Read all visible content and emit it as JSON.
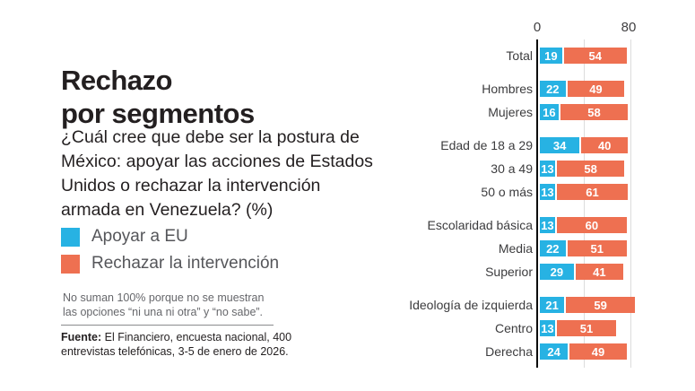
{
  "title": {
    "line1": "Rechazo",
    "line2": "por segmentos"
  },
  "question": "¿Cuál cree que debe ser la postura de\nMéxico: apoyar las acciones de Estados\nUnidos o rechazar la intervención\narmada en Venezuela? (%)",
  "legend": {
    "items": [
      {
        "label": "Apoyar a EU",
        "color": "#27b2e3"
      },
      {
        "label": "Rechazar la intervención",
        "color": "#ee7051"
      }
    ]
  },
  "note": "No suman 100% porque no se muestran\nlas opciones “ni una ni otra” y “no sabe”.",
  "source": {
    "label": "Fuente:",
    "text": "El Financiero, encuesta nacional, 400 entrevistas telefónicas, 3-5 de enero de 2026."
  },
  "chart_data": {
    "type": "bar",
    "orientation": "horizontal",
    "stacked": true,
    "title": "Rechazo por segmentos",
    "categories": [
      "Total",
      "Hombres",
      "Mujeres",
      "Edad de 18 a 29",
      "30 a 49",
      "50 o más",
      "Escolaridad básica",
      "Media",
      "Superior",
      "Ideología de izquierda",
      "Centro",
      "Derecha"
    ],
    "group_starts": [
      0,
      1,
      3,
      6,
      9
    ],
    "series": [
      {
        "name": "Apoyar a EU",
        "color": "#27b2e3",
        "values": [
          19,
          22,
          16,
          34,
          13,
          13,
          13,
          22,
          29,
          21,
          13,
          24
        ]
      },
      {
        "name": "Rechazar la intervención",
        "color": "#ee7051",
        "values": [
          54,
          49,
          58,
          40,
          58,
          61,
          60,
          51,
          41,
          59,
          51,
          49
        ]
      }
    ],
    "xlim": [
      0,
      80
    ],
    "tick_labels": [
      "0",
      "80"
    ],
    "gridlines": [
      40,
      80
    ],
    "legend_position": "left",
    "value_labels": "inside-white-bold",
    "axis_color": "#0c0c0c",
    "gridline_color": "#dcdcdc"
  }
}
